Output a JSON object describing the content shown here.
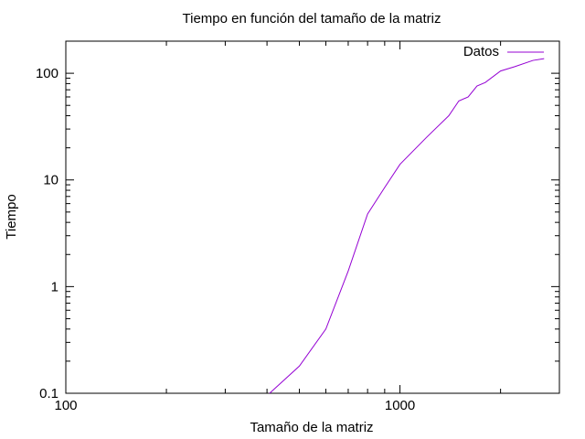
{
  "chart_data": {
    "type": "line",
    "title": "Tiempo en función del tamaño de la matriz",
    "xlabel": "Tamaño de la matriz",
    "ylabel": "Tiempo",
    "xscale": "log",
    "yscale": "log",
    "xlim": [
      100,
      3000
    ],
    "ylim": [
      0.1,
      200
    ],
    "grid": false,
    "legend_position": "top-right",
    "x_ticks": [
      {
        "value": 100,
        "label": "100"
      },
      {
        "value": 1000,
        "label": "1000"
      }
    ],
    "y_ticks": [
      {
        "value": 0.1,
        "label": "0.1"
      },
      {
        "value": 1,
        "label": "1"
      },
      {
        "value": 10,
        "label": "10"
      },
      {
        "value": 100,
        "label": "100"
      }
    ],
    "series": [
      {
        "name": "Datos",
        "color": "#9400d3",
        "x": [
          400,
          500,
          600,
          700,
          800,
          900,
          1000,
          1200,
          1400,
          1500,
          1600,
          1700,
          1800,
          2000,
          2200,
          2500,
          2700
        ],
        "y": [
          0.095,
          0.18,
          0.4,
          1.4,
          4.8,
          8.5,
          14,
          25,
          40,
          55,
          60,
          76,
          82,
          105,
          115,
          132,
          137
        ]
      }
    ]
  }
}
